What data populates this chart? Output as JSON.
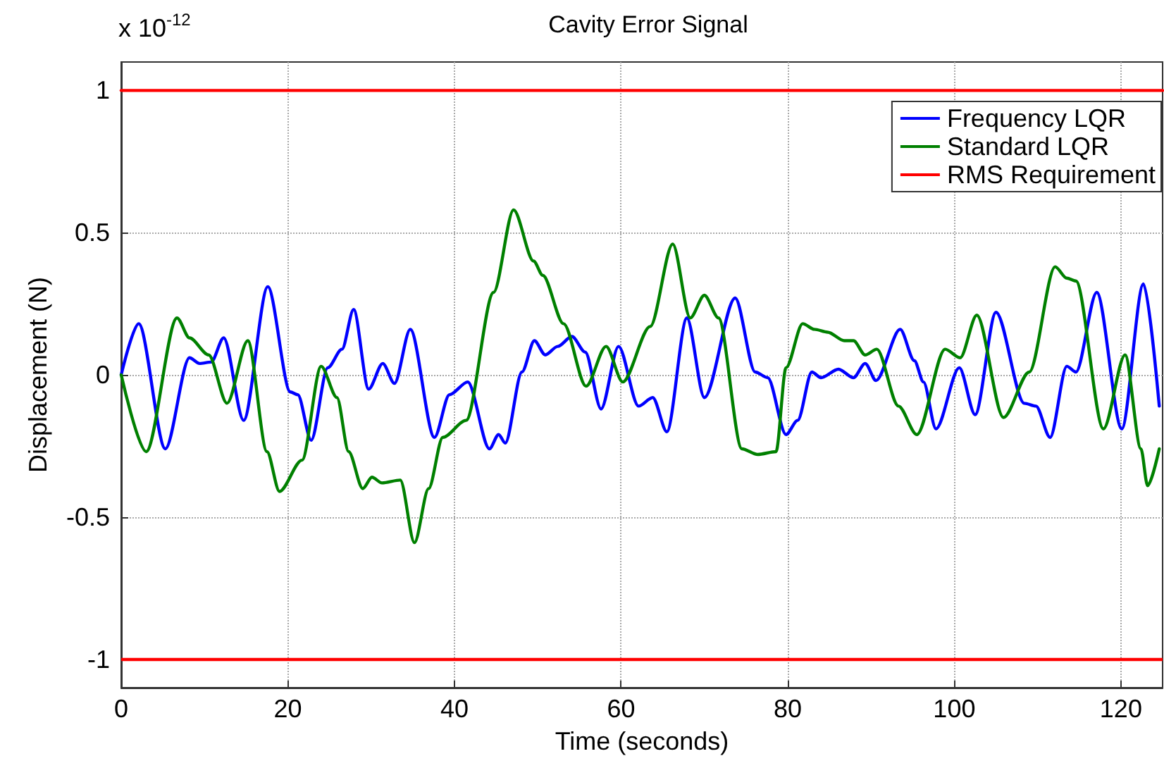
{
  "chart_data": {
    "type": "line",
    "title": "Cavity Error Signal",
    "xlabel": "Time (seconds)",
    "ylabel": "Displacement (N)",
    "annotations": [
      "x 10$^{-12}$"
    ],
    "xlim": [
      0,
      125
    ],
    "xticks": [
      0,
      20,
      40,
      60,
      80,
      100,
      120
    ],
    "ylim": [
      -1.1,
      1.1
    ],
    "yticks": [
      -1,
      -0.5,
      0,
      0.5,
      1
    ],
    "grid": true,
    "legend": "top right",
    "marker": "none",
    "line_style": "solid",
    "series": [
      {
        "name": "Frequency LQR",
        "color": "#0000ff",
        "x": [
          0,
          2.1,
          5.3,
          8.2,
          9.4,
          10.8,
          12.3,
          14.7,
          17.6,
          20.3,
          21.2,
          22.8,
          24.8,
          26.5,
          27.9,
          29.7,
          31.4,
          32.8,
          34.7,
          37.6,
          39.4,
          41.6,
          44.2,
          45.3,
          46.1,
          48.1,
          49.6,
          50.9,
          52.4,
          54.1,
          55.7,
          57.6,
          59.7,
          62.1,
          63.8,
          65.5,
          67.9,
          70,
          73.7,
          76.1,
          77.6,
          79.8,
          81.2,
          82.9,
          84,
          86.1,
          87.9,
          89.3,
          90.6,
          93.5,
          95.2,
          96.3,
          97.8,
          100.6,
          102.5,
          105,
          108.4,
          109.8,
          111.5,
          113.5,
          114.6,
          117.1,
          120.1,
          122.7,
          124.6
        ],
        "values": [
          0,
          0.18,
          -0.26,
          0.06,
          0.04,
          0.045,
          0.13,
          -0.16,
          0.31,
          -0.06,
          -0.07,
          -0.23,
          0.025,
          0.09,
          0.23,
          -0.05,
          0.04,
          -0.03,
          0.16,
          -0.22,
          -0.07,
          -0.025,
          -0.26,
          -0.21,
          -0.24,
          0.01,
          0.12,
          0.07,
          0.1,
          0.135,
          0.08,
          -0.12,
          0.1,
          -0.11,
          -0.08,
          -0.2,
          0.2,
          -0.08,
          0.27,
          0.01,
          -0.01,
          -0.21,
          -0.16,
          0.01,
          -0.01,
          0.02,
          -0.01,
          0.04,
          -0.02,
          0.16,
          0.05,
          -0.025,
          -0.19,
          0.025,
          -0.14,
          0.22,
          -0.1,
          -0.11,
          -0.22,
          0.03,
          0.01,
          0.29,
          -0.19,
          0.32,
          -0.11
        ]
      },
      {
        "name": "Standard LQR",
        "color": "#008000",
        "x": [
          0,
          3,
          6.7,
          8.2,
          10.5,
          12.7,
          15.2,
          17.5,
          19,
          21.7,
          24,
          25.9,
          27.3,
          29,
          30.1,
          31.3,
          33.5,
          35.2,
          36.9,
          38.6,
          41.4,
          44.7,
          47.1,
          49.5,
          50.6,
          53.1,
          55.8,
          58.2,
          60.2,
          63.5,
          66.2,
          68.3,
          70,
          71.7,
          74.5,
          76.4,
          78.6,
          79.8,
          81.8,
          83.2,
          84.8,
          86.8,
          87.9,
          89.3,
          90.7,
          93.3,
          95.5,
          98.9,
          100.7,
          102.7,
          105.9,
          109,
          112.1,
          113.5,
          114.6,
          117.9,
          120.5,
          122.4,
          123.2,
          124.6
        ],
        "values": [
          0,
          -0.27,
          0.2,
          0.13,
          0.07,
          -0.1,
          0.12,
          -0.27,
          -0.41,
          -0.3,
          0.03,
          -0.08,
          -0.27,
          -0.4,
          -0.36,
          -0.38,
          -0.37,
          -0.59,
          -0.4,
          -0.22,
          -0.16,
          0.29,
          0.58,
          0.4,
          0.35,
          0.18,
          -0.04,
          0.1,
          -0.025,
          0.17,
          0.46,
          0.2,
          0.28,
          0.2,
          -0.26,
          -0.28,
          -0.27,
          0.025,
          0.18,
          0.16,
          0.15,
          0.12,
          0.12,
          0.07,
          0.09,
          -0.11,
          -0.21,
          0.09,
          0.06,
          0.21,
          -0.15,
          0.01,
          0.38,
          0.34,
          0.33,
          -0.19,
          0.07,
          -0.26,
          -0.39,
          -0.26
        ]
      },
      {
        "name": "RMS Requirement",
        "color": "#ff0000",
        "x": [
          0,
          125
        ],
        "values": [
          1,
          1
        ]
      }
    ],
    "ref_lines": [
      {
        "axis": "y",
        "value": -1,
        "color": "#ff0000",
        "line_style": "solid"
      }
    ]
  }
}
